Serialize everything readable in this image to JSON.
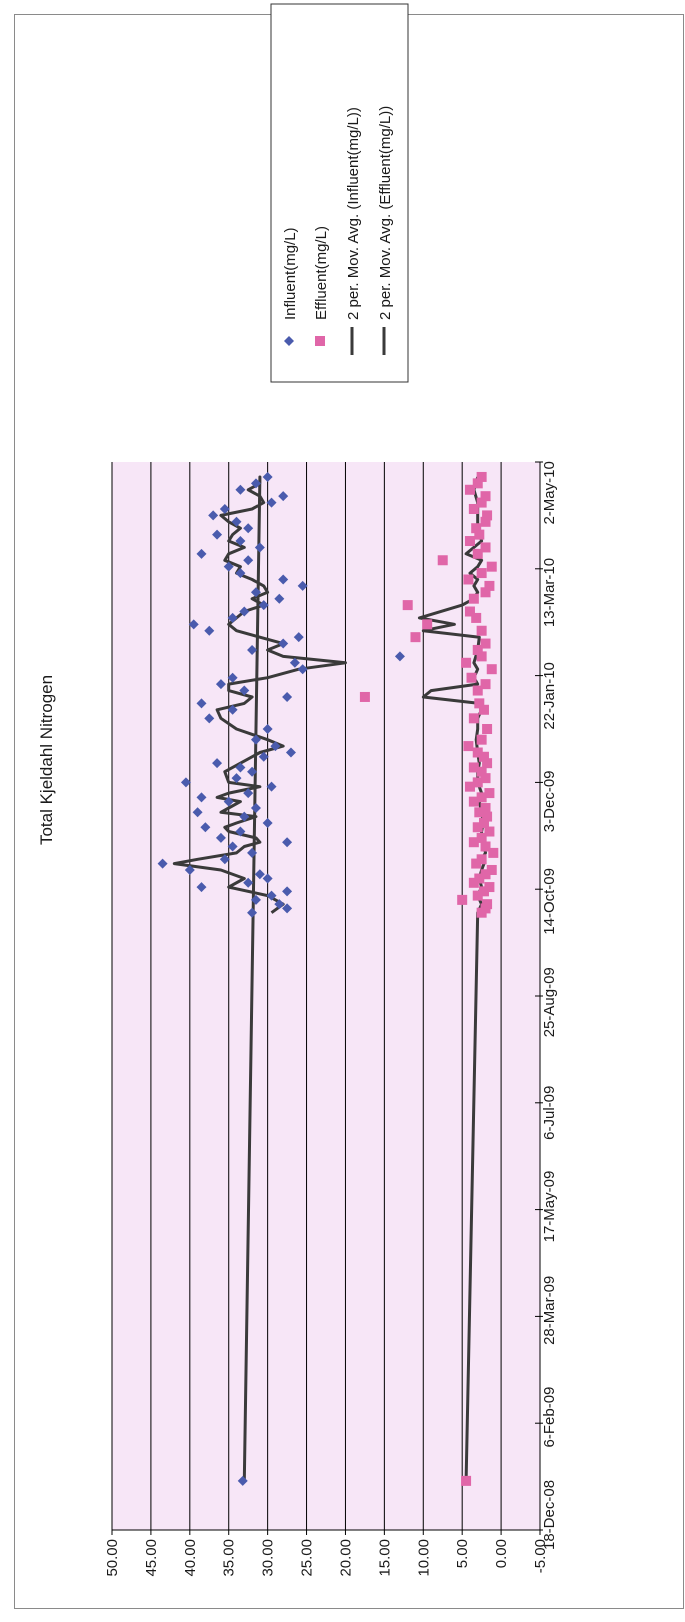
{
  "chart_data": {
    "type": "scatter",
    "orientation": "rotated 90 degrees counter-clockwise",
    "title": "Total Kjeldahl Nitrogen",
    "xlabel": "",
    "ylabel": "",
    "ylim": [
      -5,
      50
    ],
    "y_ticks": [
      "50.00",
      "45.00",
      "40.00",
      "35.00",
      "30.00",
      "25.00",
      "20.00",
      "15.00",
      "10.00",
      "5.00",
      "0.00",
      "-5.00"
    ],
    "x_ticks": [
      "18-Dec-08",
      "6-Feb-09",
      "28-Mar-09",
      "17-May-09",
      "6-Jul-09",
      "25-Aug-09",
      "14-Oct-09",
      "3-Dec-09",
      "22-Jan-10",
      "13-Mar-10",
      "2-May-10"
    ],
    "xlim": [
      "18-Dec-08",
      "2-May-10"
    ],
    "grid": true,
    "legend_position": "top-right",
    "colors": {
      "plot_bg": "#f7e6f7",
      "influent": "#4a5bad",
      "effluent": "#e066a8",
      "avg_line": "#3a3a3a",
      "grid": "#000000"
    },
    "series": [
      {
        "name": "Influent(mg/L)",
        "kind": "scatter",
        "marker": "diamond",
        "x": [
          "2009-01-10",
          "2009-10-03",
          "2009-10-05",
          "2009-10-07",
          "2009-10-09",
          "2009-10-11",
          "2009-10-13",
          "2009-10-15",
          "2009-10-17",
          "2009-10-19",
          "2009-10-21",
          "2009-10-23",
          "2009-10-26",
          "2009-10-28",
          "2009-10-31",
          "2009-11-03",
          "2009-11-05",
          "2009-11-07",
          "2009-11-10",
          "2009-11-12",
          "2009-11-14",
          "2009-11-17",
          "2009-11-19",
          "2009-11-21",
          "2009-11-24",
          "2009-11-26",
          "2009-11-28",
          "2009-12-01",
          "2009-12-03",
          "2009-12-05",
          "2009-12-08",
          "2009-12-10",
          "2009-12-12",
          "2009-12-15",
          "2009-12-17",
          "2009-12-20",
          "2009-12-23",
          "2009-12-28",
          "2010-01-02",
          "2010-01-06",
          "2010-01-09",
          "2010-01-12",
          "2010-01-15",
          "2010-01-18",
          "2010-01-21",
          "2010-01-25",
          "2010-01-28",
          "2010-01-31",
          "2010-02-03",
          "2010-02-06",
          "2010-02-09",
          "2010-02-12",
          "2010-02-15",
          "2010-02-18",
          "2010-02-21",
          "2010-02-24",
          "2010-02-27",
          "2010-03-02",
          "2010-03-05",
          "2010-03-08",
          "2010-03-11",
          "2010-03-14",
          "2010-03-17",
          "2010-03-20",
          "2010-03-23",
          "2010-03-26",
          "2010-03-29",
          "2010-04-01",
          "2010-04-04",
          "2010-04-07",
          "2010-04-10",
          "2010-04-13",
          "2010-04-16",
          "2010-04-19",
          "2010-04-22",
          "2010-04-25"
        ],
        "values": [
          33.2,
          32.0,
          27.5,
          28.5,
          31.5,
          29.5,
          27.5,
          38.5,
          32.5,
          30.0,
          31.0,
          40.0,
          43.5,
          35.5,
          32.0,
          34.5,
          27.5,
          36.0,
          33.5,
          38.0,
          30.0,
          33.0,
          39.0,
          31.5,
          35.0,
          38.5,
          32.5,
          29.5,
          40.5,
          34.0,
          32.0,
          33.5,
          36.5,
          30.5,
          27.0,
          29.0,
          31.5,
          30.0,
          37.5,
          34.5,
          38.5,
          27.5,
          33.0,
          36.0,
          34.5,
          25.5,
          26.5,
          13.0,
          32.0,
          28.0,
          26.0,
          37.5,
          39.5,
          34.5,
          33.0,
          30.5,
          28.5,
          31.5,
          25.5,
          28.0,
          33.5,
          35.0,
          32.5,
          38.5,
          31.0,
          33.5,
          36.5,
          32.5,
          34.0,
          37.0,
          35.5,
          29.5,
          28.0,
          33.5,
          31.5,
          30.0
        ]
      },
      {
        "name": "Effluent(mg/L)",
        "kind": "scatter",
        "marker": "square",
        "x": [
          "2009-01-10",
          "2009-10-03",
          "2009-10-05",
          "2009-10-07",
          "2009-10-09",
          "2009-10-11",
          "2009-10-13",
          "2009-10-15",
          "2009-10-17",
          "2009-10-19",
          "2009-10-21",
          "2009-10-23",
          "2009-10-26",
          "2009-10-28",
          "2009-10-31",
          "2009-11-03",
          "2009-11-05",
          "2009-11-07",
          "2009-11-10",
          "2009-11-12",
          "2009-11-14",
          "2009-11-17",
          "2009-11-19",
          "2009-11-21",
          "2009-11-24",
          "2009-11-26",
          "2009-11-28",
          "2009-12-01",
          "2009-12-03",
          "2009-12-05",
          "2009-12-08",
          "2009-12-10",
          "2009-12-12",
          "2009-12-15",
          "2009-12-17",
          "2009-12-20",
          "2009-12-23",
          "2009-12-28",
          "2010-01-02",
          "2010-01-06",
          "2010-01-09",
          "2010-01-12",
          "2010-01-15",
          "2010-01-18",
          "2010-01-21",
          "2010-01-25",
          "2010-01-28",
          "2010-01-31",
          "2010-02-03",
          "2010-02-06",
          "2010-02-09",
          "2010-02-12",
          "2010-02-15",
          "2010-02-18",
          "2010-02-21",
          "2010-02-24",
          "2010-02-27",
          "2010-03-02",
          "2010-03-05",
          "2010-03-08",
          "2010-03-11",
          "2010-03-14",
          "2010-03-17",
          "2010-03-20",
          "2010-03-23",
          "2010-03-26",
          "2010-03-29",
          "2010-04-01",
          "2010-04-04",
          "2010-04-07",
          "2010-04-10",
          "2010-04-13",
          "2010-04-16",
          "2010-04-19",
          "2010-04-22",
          "2010-04-25"
        ],
        "values": [
          4.5,
          2.5,
          2.0,
          1.8,
          5.0,
          3.0,
          2.2,
          1.5,
          3.5,
          2.8,
          2.0,
          1.2,
          3.2,
          2.5,
          1.0,
          2.0,
          3.5,
          2.5,
          1.5,
          3.0,
          2.2,
          1.8,
          2.8,
          2.0,
          3.5,
          2.5,
          1.5,
          4.0,
          3.0,
          2.0,
          2.5,
          3.5,
          1.8,
          2.2,
          3.0,
          4.2,
          2.5,
          1.8,
          3.5,
          2.2,
          2.8,
          17.5,
          3.0,
          2.0,
          3.8,
          1.2,
          4.5,
          2.5,
          3.0,
          2.0,
          11.0,
          2.5,
          9.5,
          3.2,
          4.0,
          12.0,
          3.5,
          2.0,
          1.5,
          4.2,
          2.5,
          1.2,
          7.5,
          3.0,
          2.0,
          4.0,
          2.8,
          3.2,
          2.0,
          1.8,
          3.5,
          2.5,
          2.0,
          4.0,
          3.0,
          2.5
        ]
      },
      {
        "name": "2 per. Mov. Avg. (Influent(mg/L))",
        "kind": "line",
        "x": [
          "2009-10-03",
          "2009-10-07",
          "2009-10-11",
          "2009-10-15",
          "2009-10-19",
          "2009-10-23",
          "2009-10-26",
          "2009-10-28",
          "2009-10-31",
          "2009-11-03",
          "2009-11-05",
          "2009-11-07",
          "2009-11-10",
          "2009-11-12",
          "2009-11-14",
          "2009-11-17",
          "2009-11-19",
          "2009-11-21",
          "2009-11-24",
          "2009-11-26",
          "2009-11-28",
          "2009-12-01",
          "2009-12-03",
          "2009-12-08",
          "2009-12-12",
          "2009-12-17",
          "2009-12-20",
          "2009-12-23",
          "2009-12-28",
          "2010-01-02",
          "2010-01-06",
          "2010-01-09",
          "2010-01-12",
          "2010-01-15",
          "2010-01-18",
          "2010-01-21",
          "2010-01-25",
          "2010-01-28",
          "2010-01-31",
          "2010-02-03",
          "2010-02-06",
          "2010-02-09",
          "2010-02-12",
          "2010-02-15",
          "2010-02-18",
          "2010-02-21",
          "2010-02-24",
          "2010-02-27",
          "2010-03-02",
          "2010-03-05",
          "2010-03-08",
          "2010-03-11",
          "2010-03-14",
          "2010-03-17",
          "2010-03-20",
          "2010-03-23",
          "2010-03-26",
          "2010-03-29",
          "2010-04-01",
          "2010-04-04",
          "2010-04-07",
          "2010-04-10",
          "2010-04-13",
          "2010-04-16",
          "2010-04-19",
          "2010-04-22",
          "2010-04-25",
          "2009-01-10"
        ],
        "values": [
          29.5,
          28.0,
          30.0,
          35.0,
          33.0,
          36.0,
          42.0,
          39.0,
          34.0,
          33.0,
          31.0,
          31.5,
          35.0,
          35.5,
          34.0,
          31.5,
          36.0,
          35.0,
          33.5,
          36.5,
          35.0,
          31.0,
          35.0,
          35.5,
          33.5,
          31.0,
          28.0,
          30.0,
          34.0,
          36.0,
          36.5,
          33.0,
          32.0,
          35.0,
          35.0,
          30.0,
          26.0,
          20.0,
          28.0,
          30.0,
          28.0,
          31.0,
          34.0,
          35.0,
          34.0,
          33.0,
          30.5,
          32.0,
          30.0,
          30.5,
          32.0,
          34.0,
          33.5,
          35.5,
          35.0,
          33.0,
          35.0,
          34.5,
          33.5,
          35.0,
          36.0,
          32.0,
          30.5,
          31.0,
          32.5,
          31.0,
          31.0,
          33.0
        ]
      },
      {
        "name": "2 per. Mov. Avg. (Effluent(mg/L))",
        "kind": "line",
        "x": [
          "2009-01-10",
          "2009-10-03",
          "2009-10-07",
          "2009-10-11",
          "2009-10-15",
          "2009-10-19",
          "2009-10-23",
          "2009-10-26",
          "2009-10-28",
          "2009-10-31",
          "2009-11-03",
          "2009-11-07",
          "2009-11-10",
          "2009-11-14",
          "2009-11-19",
          "2009-11-24",
          "2009-11-28",
          "2009-12-03",
          "2009-12-08",
          "2009-12-12",
          "2009-12-17",
          "2009-12-23",
          "2009-12-28",
          "2010-01-02",
          "2010-01-06",
          "2010-01-09",
          "2010-01-12",
          "2010-01-15",
          "2010-01-18",
          "2010-01-21",
          "2010-01-25",
          "2010-01-28",
          "2010-02-03",
          "2010-02-09",
          "2010-02-12",
          "2010-02-15",
          "2010-02-18",
          "2010-02-24",
          "2010-02-27",
          "2010-03-02",
          "2010-03-05",
          "2010-03-08",
          "2010-03-11",
          "2010-03-14",
          "2010-03-17",
          "2010-03-20",
          "2010-03-23",
          "2010-03-26",
          "2010-04-01",
          "2010-04-07",
          "2010-04-13",
          "2010-04-19",
          "2010-04-25"
        ],
        "values": [
          4.5,
          3.0,
          2.5,
          3.0,
          2.5,
          2.8,
          2.5,
          2.2,
          2.5,
          2.0,
          2.2,
          2.5,
          2.5,
          2.3,
          2.5,
          2.8,
          2.5,
          3.0,
          3.0,
          2.8,
          3.0,
          3.2,
          3.0,
          3.0,
          2.5,
          2.8,
          10.0,
          9.0,
          3.0,
          3.5,
          3.0,
          3.5,
          3.0,
          2.8,
          10.0,
          6.0,
          10.5,
          5.0,
          3.5,
          3.0,
          3.5,
          3.0,
          4.0,
          3.0,
          2.5,
          4.5,
          3.5,
          2.5,
          3.0,
          3.0,
          3.0,
          3.5,
          3.0
        ]
      }
    ]
  },
  "legend": {
    "items": [
      {
        "label": "Influent(mg/L)"
      },
      {
        "label": "Effluent(mg/L)"
      },
      {
        "label": "2 per. Mov. Avg. (Influent(mg/L))"
      },
      {
        "label": "2 per. Mov. Avg. (Effluent(mg/L))"
      }
    ]
  }
}
